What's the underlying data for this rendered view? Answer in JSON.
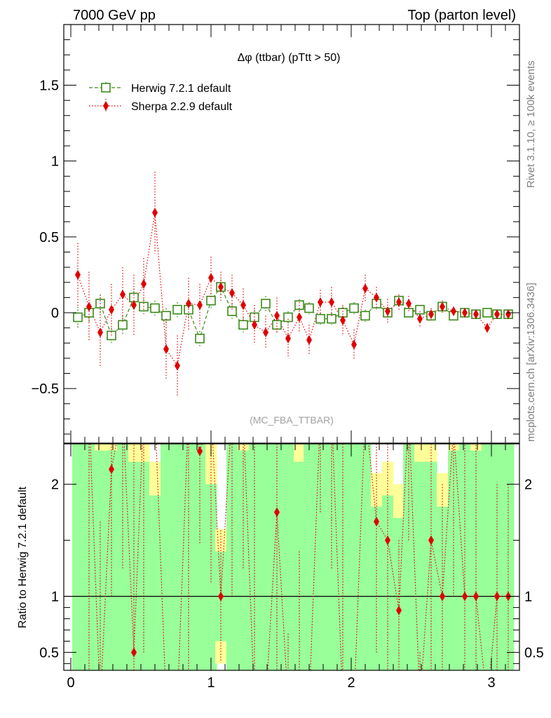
{
  "header": {
    "left_title": "7000 GeV pp",
    "right_title": "Top (parton level)"
  },
  "side_labels": {
    "rivet": "Rivet 3.1.10, ≥ 100k events",
    "mcplots": "mcplots.cern.ch [arXiv:1306.3436]"
  },
  "colors": {
    "herwig": "#3a8a1a",
    "sherpa": "#e00000",
    "band_inner": "#99ff99",
    "band_outer": "#ffff99"
  },
  "chart_data": [
    {
      "type": "scatter",
      "title": "Δφ (ttbar) (pTtt > 50)",
      "watermark": "(MC_FBA_TTBAR)",
      "xlim": [
        -0.05,
        3.2
      ],
      "ylim": [
        -0.86,
        1.9
      ],
      "yticks": [
        -0.5,
        0,
        0.5,
        1,
        1.5
      ],
      "ytick_labels": [
        "−0.5",
        "0",
        "0.5",
        "1",
        "1.5"
      ],
      "legend": {
        "position": "top-left"
      },
      "x": [
        0.05,
        0.13,
        0.21,
        0.29,
        0.37,
        0.45,
        0.52,
        0.6,
        0.68,
        0.76,
        0.84,
        0.92,
        1.0,
        1.07,
        1.15,
        1.23,
        1.31,
        1.39,
        1.47,
        1.55,
        1.63,
        1.7,
        1.78,
        1.86,
        1.94,
        2.02,
        2.1,
        2.18,
        2.26,
        2.34,
        2.41,
        2.49,
        2.57,
        2.65,
        2.73,
        2.81,
        2.89,
        2.97,
        3.04,
        3.12
      ],
      "series": [
        {
          "name": "Herwig 7.2.1 default",
          "y": [
            -0.03,
            0.0,
            0.06,
            -0.15,
            -0.08,
            0.1,
            0.04,
            0.03,
            -0.02,
            0.02,
            0.02,
            -0.17,
            0.08,
            0.17,
            0.01,
            -0.08,
            -0.03,
            0.06,
            -0.08,
            -0.03,
            0.05,
            0.03,
            -0.04,
            -0.04,
            0.0,
            0.03,
            -0.02,
            0.06,
            0.0,
            0.08,
            0.0,
            0.02,
            -0.02,
            0.04,
            -0.02,
            0.0,
            -0.01,
            0.0,
            -0.01,
            -0.01
          ],
          "err": [
            0.07,
            0.06,
            0.06,
            0.05,
            0.06,
            0.06,
            0.05,
            0.05,
            0.05,
            0.05,
            0.05,
            0.05,
            0.05,
            0.05,
            0.05,
            0.05,
            0.05,
            0.05,
            0.05,
            0.04,
            0.04,
            0.04,
            0.04,
            0.04,
            0.04,
            0.04,
            0.04,
            0.04,
            0.03,
            0.03,
            0.03,
            0.03,
            0.03,
            0.03,
            0.03,
            0.03,
            0.03,
            0.03,
            0.03,
            0.03
          ]
        },
        {
          "name": "Sherpa 2.2.9 default",
          "y": [
            0.25,
            0.04,
            -0.13,
            0.02,
            0.12,
            0.05,
            0.19,
            0.66,
            -0.24,
            -0.35,
            0.06,
            0.05,
            0.23,
            0.17,
            0.13,
            0.05,
            -0.08,
            -0.13,
            -0.02,
            -0.17,
            -0.03,
            -0.18,
            0.07,
            0.07,
            -0.05,
            -0.21,
            0.16,
            0.1,
            0.01,
            0.07,
            0.06,
            -0.04,
            -0.01,
            0.04,
            0.01,
            0.0,
            -0.01,
            -0.1,
            -0.01,
            -0.01
          ],
          "err": [
            0.21,
            0.23,
            0.23,
            0.17,
            0.18,
            0.2,
            0.17,
            0.27,
            0.2,
            0.2,
            0.17,
            0.14,
            0.14,
            0.1,
            0.12,
            0.11,
            0.13,
            0.11,
            0.12,
            0.13,
            0.1,
            0.1,
            0.08,
            0.1,
            0.1,
            0.1,
            0.09,
            0.07,
            0.08,
            0.05,
            0.05,
            0.05,
            0.04,
            0.04,
            0.03,
            0.03,
            0.03,
            0.03,
            0.02,
            0.02
          ]
        }
      ]
    },
    {
      "type": "scatter",
      "ylabel": "Ratio to Herwig 7.2.1 default",
      "xlim": [
        -0.05,
        3.2
      ],
      "ylim": [
        0.34,
        2.36
      ],
      "xticks": [
        0,
        1,
        2,
        3
      ],
      "xtick_labels": [
        "0",
        "1",
        "2",
        "3"
      ],
      "yticks": [
        0.5,
        1,
        2
      ],
      "ytick_labels": [
        "0.5",
        "1",
        "2"
      ],
      "band_inner_rel": [
        1.6,
        4.2,
        1.3,
        1.3,
        2.2,
        1.2,
        1.2,
        0.9,
        2.6,
        2.4,
        3.3,
        1.5,
        1.0,
        0.4,
        4.4,
        1.3,
        2.2,
        1.4,
        2.5,
        1.6,
        1.2,
        1.4,
        1.4,
        1.5,
        2.1,
        2.0,
        1.6,
        0.8,
        0.9,
        0.7,
        1.4,
        1.2,
        1.2,
        0.8,
        1.3,
        1.4,
        1.3,
        1.4,
        1.4,
        1.4
      ],
      "band_outer_rel": [
        2.5,
        5.8,
        1.7,
        1.9,
        3.0,
        1.8,
        1.6,
        1.2,
        3.6,
        3.4,
        4.6,
        2.2,
        1.4,
        0.6,
        6.0,
        1.8,
        3.0,
        1.9,
        3.4,
        2.2,
        1.6,
        1.9,
        1.9,
        2.1,
        2.9,
        2.8,
        2.2,
        1.1,
        1.2,
        1.0,
        1.9,
        1.7,
        1.7,
        1.1,
        1.8,
        1.9,
        1.8,
        1.9,
        1.9,
        1.9
      ]
    }
  ]
}
